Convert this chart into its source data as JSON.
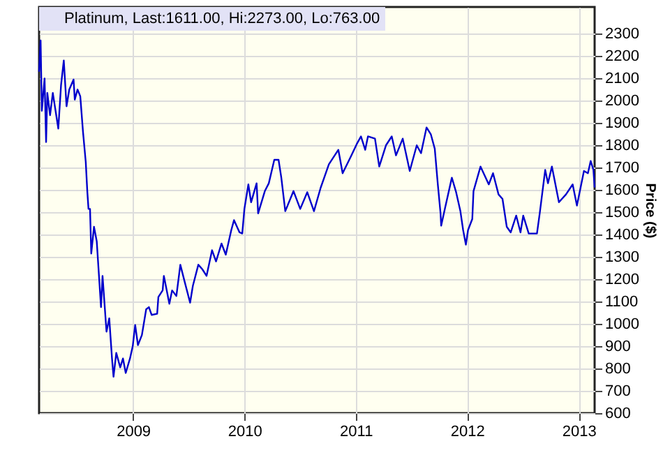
{
  "chart_data": {
    "type": "line",
    "ylabel": "Price ($)",
    "legend": "top left",
    "grid": true,
    "marker": "none",
    "line_style": "solid",
    "xlim": [
      "2008-02-28",
      "2013-02-22"
    ],
    "xticks": [
      "2009",
      "2010",
      "2011",
      "2012",
      "2013"
    ],
    "ylim": [
      600,
      2420
    ],
    "yticks": [
      600,
      700,
      800,
      900,
      1000,
      1100,
      1200,
      1300,
      1400,
      1500,
      1600,
      1700,
      1800,
      1900,
      2000,
      2100,
      2200,
      2300
    ],
    "x": [
      "2008-02-28",
      "2008-03-04",
      "2008-03-08",
      "2008-03-17",
      "2008-03-22",
      "2008-03-26",
      "2008-04-04",
      "2008-04-13",
      "2008-04-22",
      "2008-05-01",
      "2008-05-10",
      "2008-05-19",
      "2008-05-28",
      "2008-06-06",
      "2008-06-20",
      "2008-06-24",
      "2008-07-03",
      "2008-07-12",
      "2008-07-21",
      "2008-07-30",
      "2008-08-04",
      "2008-08-08",
      "2008-08-13",
      "2008-08-17",
      "2008-08-26",
      "2008-09-04",
      "2008-09-18",
      "2008-09-23",
      "2008-10-06",
      "2008-10-15",
      "2008-10-24",
      "2008-10-29",
      "2008-11-07",
      "2008-11-20",
      "2008-11-29",
      "2008-12-08",
      "2008-12-22",
      "2008-12-31",
      "2009-01-08",
      "2009-01-17",
      "2009-01-30",
      "2009-02-13",
      "2009-02-22",
      "2009-03-03",
      "2009-03-21",
      "2009-03-25",
      "2009-04-08",
      "2009-04-12",
      "2009-04-30",
      "2009-05-09",
      "2009-05-23",
      "2009-06-05",
      "2009-06-19",
      "2009-07-07",
      "2009-07-16",
      "2009-08-03",
      "2009-08-16",
      "2009-08-30",
      "2009-09-17",
      "2009-09-30",
      "2009-10-18",
      "2009-11-01",
      "2009-11-19",
      "2009-11-28",
      "2009-12-16",
      "2009-12-25",
      "2010-01-01",
      "2010-01-14",
      "2010-01-23",
      "2010-02-10",
      "2010-02-15",
      "2010-03-09",
      "2010-03-22",
      "2010-04-09",
      "2010-04-23",
      "2010-05-02",
      "2010-05-15",
      "2010-06-11",
      "2010-07-03",
      "2010-07-26",
      "2010-08-17",
      "2010-09-08",
      "2010-10-05",
      "2010-11-05",
      "2010-11-19",
      "2010-12-16",
      "2011-01-04",
      "2011-01-18",
      "2011-02-01",
      "2011-02-10",
      "2011-03-05",
      "2011-03-19",
      "2011-04-10",
      "2011-04-29",
      "2011-05-13",
      "2011-06-04",
      "2011-06-27",
      "2011-07-20",
      "2011-08-03",
      "2011-08-21",
      "2011-09-04",
      "2011-09-17",
      "2011-09-27",
      "2011-10-06",
      "2011-10-08",
      "2011-10-20",
      "2011-11-12",
      "2011-11-26",
      "2011-12-10",
      "2011-12-19",
      "2011-12-28",
      "2012-01-04",
      "2012-01-18",
      "2012-01-22",
      "2012-02-14",
      "2012-03-12",
      "2012-03-26",
      "2012-04-13",
      "2012-04-26",
      "2012-05-10",
      "2012-05-23",
      "2012-06-10",
      "2012-06-24",
      "2012-07-03",
      "2012-07-21",
      "2012-08-08",
      "2012-08-17",
      "2012-08-26",
      "2012-09-13",
      "2012-09-22",
      "2012-10-05",
      "2012-10-28",
      "2012-11-20",
      "2012-12-12",
      "2012-12-26",
      "2013-01-18",
      "2013-01-31",
      "2013-02-09",
      "2013-02-18",
      "2013-02-22"
    ],
    "series": [
      {
        "name": "Platinum, Last:1611.00, Hi:2273.00, Lo:763.00",
        "color": "#0000cc",
        "values": [
          2130,
          2270,
          1955,
          2100,
          1815,
          2035,
          1935,
          2035,
          1955,
          1875,
          2070,
          2180,
          1975,
          2050,
          2095,
          2005,
          2050,
          2020,
          1860,
          1725,
          1595,
          1515,
          1515,
          1315,
          1435,
          1370,
          1075,
          1215,
          965,
          1025,
          845,
          763,
          870,
          805,
          845,
          780,
          845,
          900,
          995,
          905,
          950,
          1065,
          1075,
          1040,
          1045,
          1120,
          1150,
          1215,
          1090,
          1150,
          1125,
          1265,
          1190,
          1095,
          1170,
          1265,
          1245,
          1215,
          1330,
          1280,
          1360,
          1310,
          1420,
          1465,
          1410,
          1405,
          1515,
          1625,
          1545,
          1630,
          1495,
          1595,
          1630,
          1735,
          1735,
          1655,
          1505,
          1595,
          1515,
          1590,
          1505,
          1610,
          1715,
          1780,
          1675,
          1750,
          1805,
          1840,
          1780,
          1840,
          1830,
          1705,
          1800,
          1840,
          1755,
          1830,
          1685,
          1800,
          1765,
          1880,
          1850,
          1785,
          1625,
          1495,
          1440,
          1515,
          1655,
          1590,
          1505,
          1420,
          1355,
          1420,
          1470,
          1595,
          1705,
          1625,
          1675,
          1580,
          1560,
          1435,
          1410,
          1485,
          1410,
          1485,
          1405,
          1405,
          1405,
          1495,
          1690,
          1630,
          1705,
          1545,
          1580,
          1625,
          1530,
          1685,
          1675,
          1730,
          1690,
          1611
        ]
      }
    ]
  }
}
